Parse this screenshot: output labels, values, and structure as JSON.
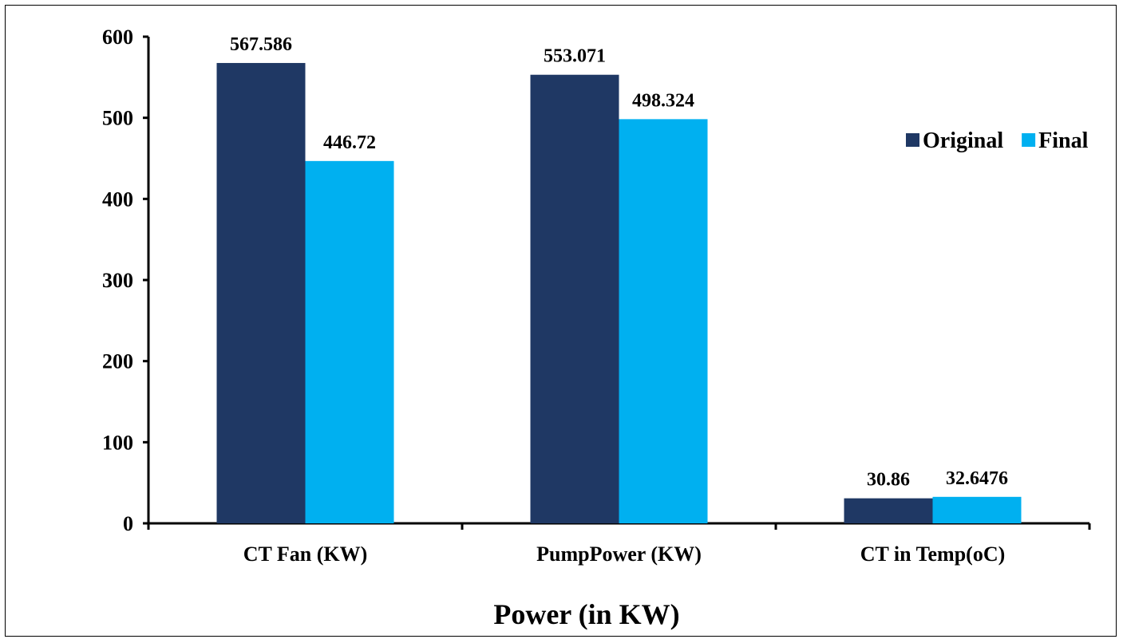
{
  "chart_data": {
    "type": "bar",
    "title": "",
    "xlabel": "Power (in KW)",
    "ylabel": "",
    "ylim": [
      0,
      600
    ],
    "yticks": [
      0,
      100,
      200,
      300,
      400,
      500,
      600
    ],
    "categories": [
      "CT Fan (KW)",
      "PumpPower (KW)",
      "CT in Temp(oC)"
    ],
    "series": [
      {
        "name": "Original",
        "color": "#1f3864",
        "values": [
          567.586,
          553.071,
          30.86
        ],
        "labels": [
          "567.586",
          "553.071",
          "30.86"
        ]
      },
      {
        "name": "Final",
        "color": "#00b0f0",
        "values": [
          446.72,
          498.324,
          32.6476
        ],
        "labels": [
          "446.72",
          "498.324",
          "32.6476"
        ]
      }
    ],
    "legend": "right",
    "grid": false,
    "data_labels": true
  }
}
